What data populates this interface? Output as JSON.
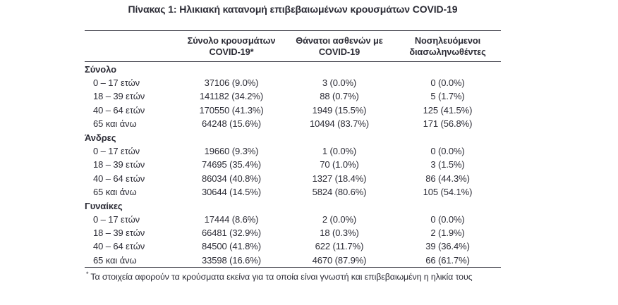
{
  "title": "Πίνακας 1: Ηλικιακή κατανομή επιβεβαιωμένων κρουσμάτων COVID-19",
  "table": {
    "col_headers": [
      {
        "line1": "Σύνολο κρουσμάτων",
        "line2": "COVID-19*"
      },
      {
        "line1": "Θάνατοι ασθενών με",
        "line2": "COVID-19"
      },
      {
        "line1": "Νοσηλευόμενοι",
        "line2": "διασωληνωθέντες"
      }
    ],
    "sections": [
      {
        "label": "Σύνολο",
        "rows": [
          {
            "age": "0 – 17 ετών",
            "values": [
              "37106 (9.0%)",
              "3 (0.0%)",
              "0 (0.0%)"
            ]
          },
          {
            "age": "18 – 39 ετών",
            "values": [
              "141182 (34.2%)",
              "88 (0.7%)",
              "5 (1.7%)"
            ]
          },
          {
            "age": "40 – 64 ετών",
            "values": [
              "170550 (41.3%)",
              "1949 (15.5%)",
              "125 (41.5%)"
            ]
          },
          {
            "age": "65 και άνω",
            "values": [
              "64248 (15.6%)",
              "10494 (83.7%)",
              "171 (56.8%)"
            ]
          }
        ]
      },
      {
        "label": "Άνδρες",
        "rows": [
          {
            "age": "0 – 17 ετών",
            "values": [
              "19660 (9.3%)",
              "1 (0.0%)",
              "0 (0.0%)"
            ]
          },
          {
            "age": "18 – 39 ετών",
            "values": [
              "74695 (35.4%)",
              "70 (1.0%)",
              "3 (1.5%)"
            ]
          },
          {
            "age": "40 – 64 ετών",
            "values": [
              "86034 (40.8%)",
              "1327 (18.4%)",
              "86 (44.3%)"
            ]
          },
          {
            "age": "65 και άνω",
            "values": [
              "30644 (14.5%)",
              "5824 (80.6%)",
              "105 (54.1%)"
            ]
          }
        ]
      },
      {
        "label": "Γυναίκες",
        "rows": [
          {
            "age": "0 – 17 ετών",
            "values": [
              "17444 (8.6%)",
              "2 (0.0%)",
              "0 (0.0%)"
            ]
          },
          {
            "age": "18 – 39 ετών",
            "values": [
              "66481 (32.9%)",
              "18 (0.3%)",
              "2 (1.9%)"
            ]
          },
          {
            "age": "40 – 64 ετών",
            "values": [
              "84500 (41.8%)",
              "622 (11.7%)",
              "39 (36.4%)"
            ]
          },
          {
            "age": "65 και άνω",
            "values": [
              "33598 (16.6%)",
              "4670 (87.9%)",
              "66 (61.7%)"
            ]
          }
        ]
      }
    ]
  },
  "footnote": {
    "marker": "*",
    "text": "Τα στοιχεία αφορούν τα κρούσματα εκείνα για τα οποία είναι γνωστή και επιβεβαιωμένη η ηλικία τους"
  },
  "colors": {
    "text": "#2b2b35",
    "rule": "#3d3d47",
    "background": "#ffffff"
  }
}
